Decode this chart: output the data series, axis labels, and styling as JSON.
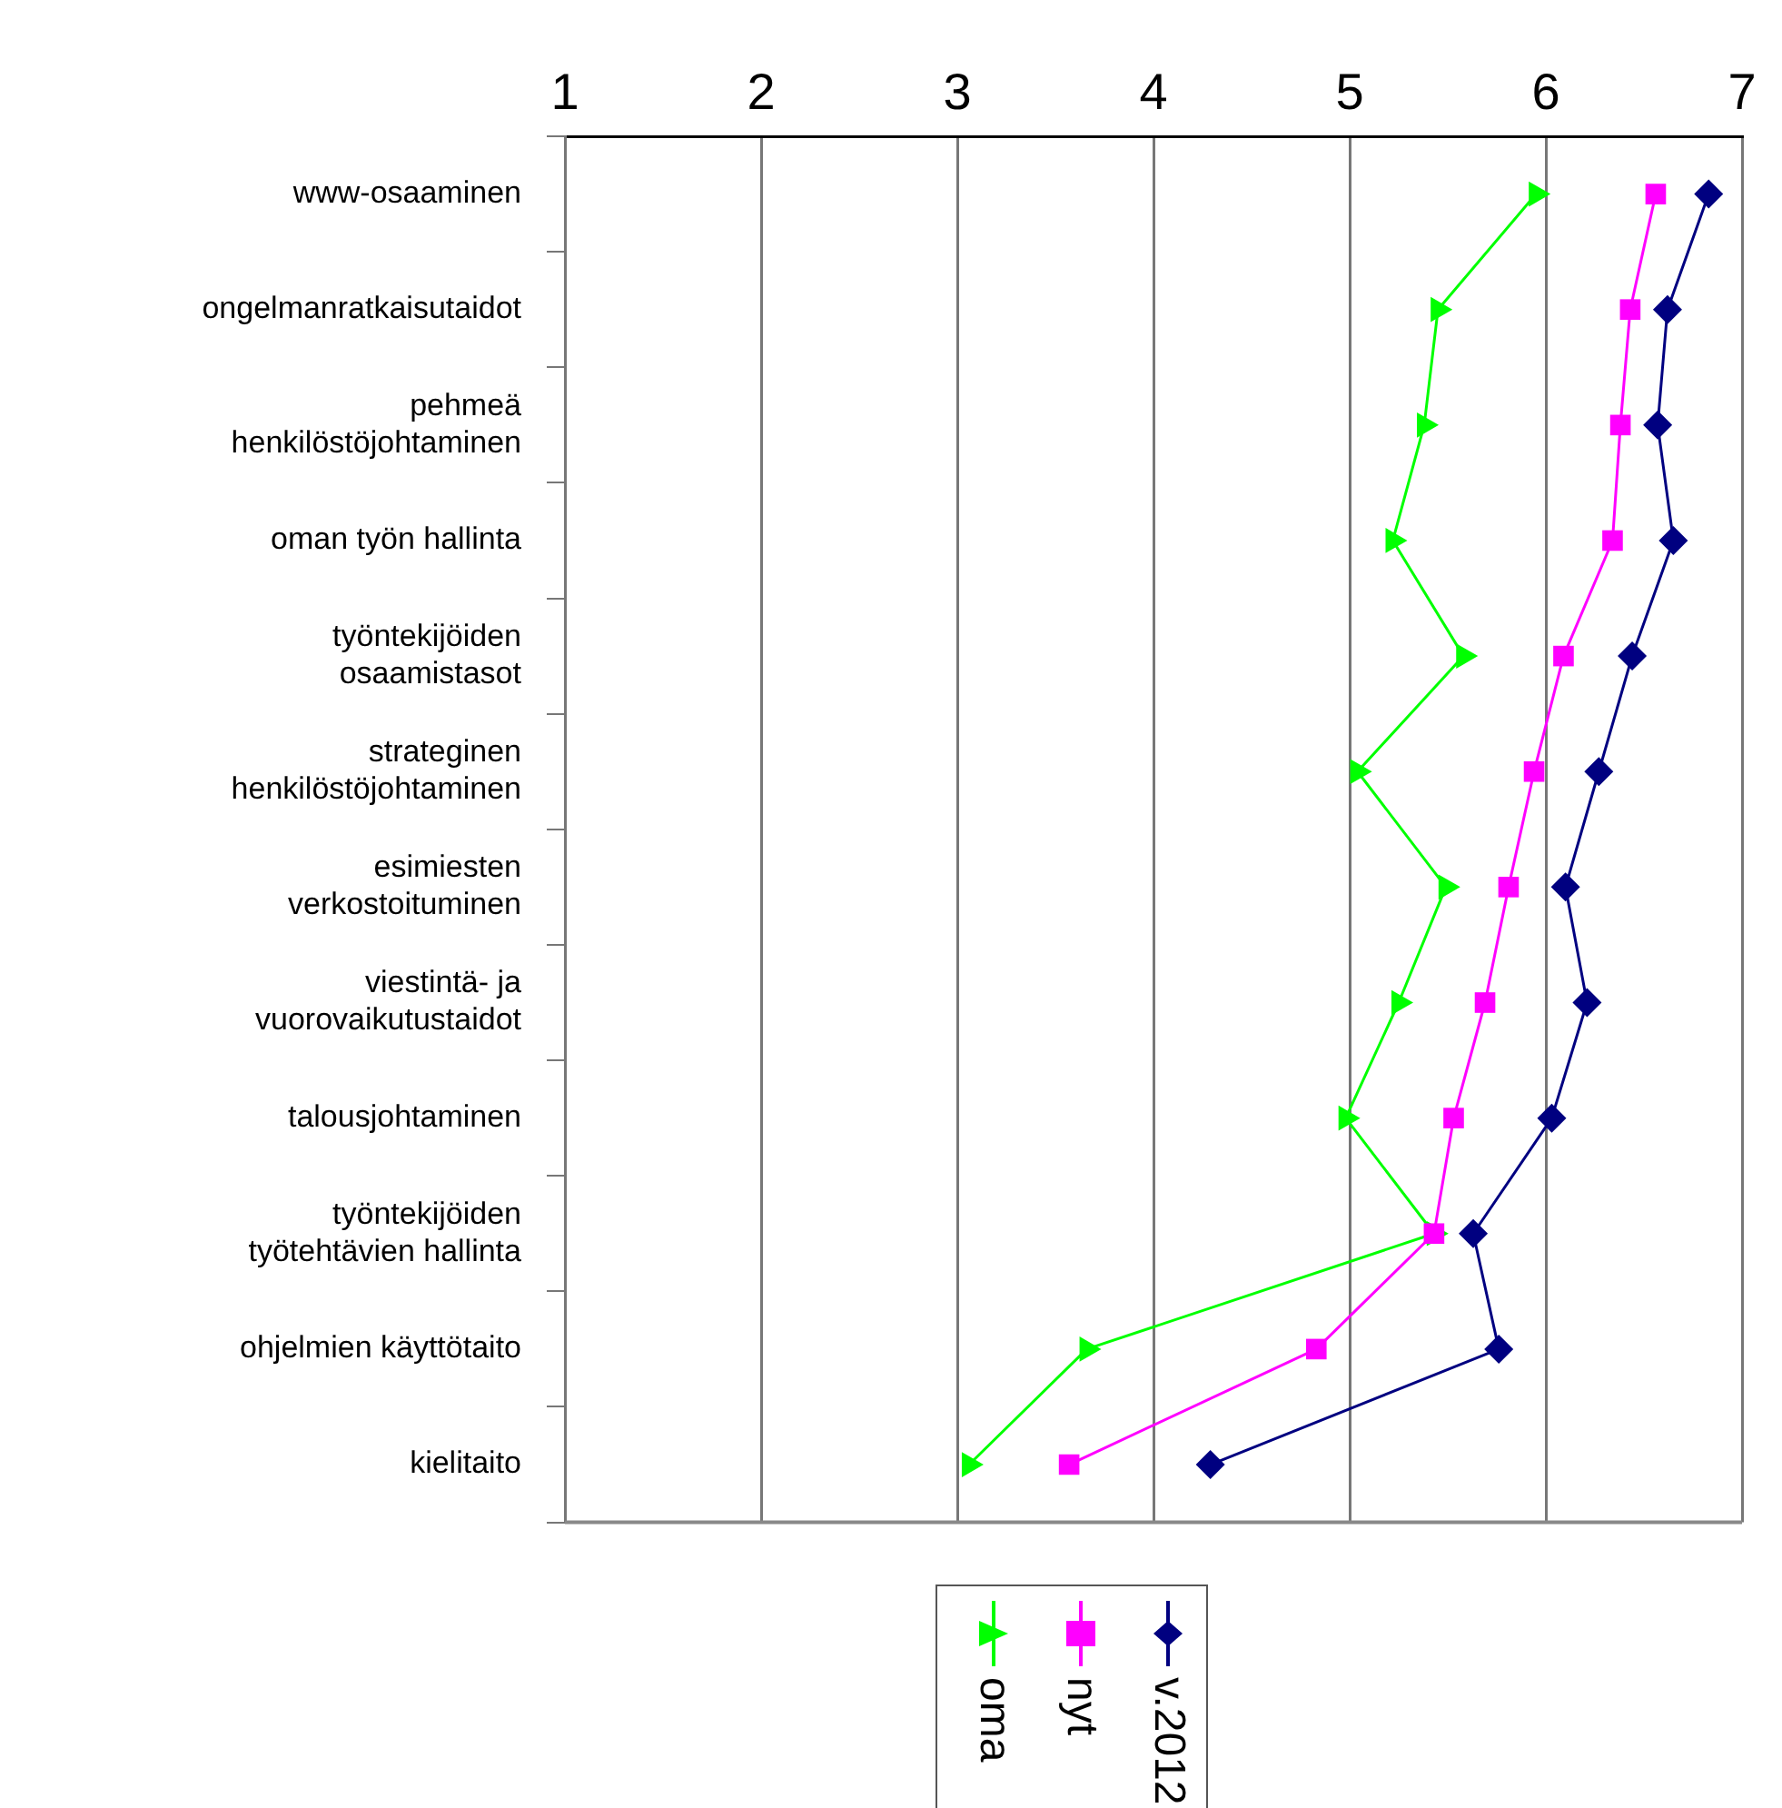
{
  "chart_data": {
    "type": "line",
    "orientation": "horizontal",
    "categories": [
      "www-osaaminen",
      "ongelmanratkaisutaidot",
      "pehmeä\nhenkilöstöjohtaminen",
      "oman työn hallinta",
      "työntekijöiden\nosaamistasot",
      "strateginen\nhenkilöstöjohtaminen",
      "esimiesten\nverkostoituminen",
      "viestintä- ja\nvuorovaikutustaidot",
      "talousjohtaminen",
      "työntekijöiden\ntyötehtävien hallinta",
      "ohjelmien käyttötaito",
      "kielitaito"
    ],
    "series": [
      {
        "name": "oma",
        "color": "#00ff00",
        "marker": "triangle",
        "values": [
          5.95,
          5.45,
          5.38,
          5.22,
          5.58,
          5.04,
          5.49,
          5.25,
          4.98,
          5.43,
          3.66,
          3.06
        ]
      },
      {
        "name": "nyt",
        "color": "#ff00ff",
        "marker": "square",
        "values": [
          6.56,
          6.43,
          6.38,
          6.34,
          6.09,
          5.94,
          5.81,
          5.69,
          5.53,
          5.43,
          4.83,
          3.57
        ]
      },
      {
        "name": "v.2012",
        "color": "#000080",
        "marker": "diamond",
        "values": [
          6.83,
          6.62,
          6.57,
          6.65,
          6.44,
          6.27,
          6.1,
          6.21,
          6.03,
          5.63,
          5.76,
          4.29
        ]
      }
    ],
    "xlim": [
      1,
      7
    ],
    "xticks": [
      1,
      2,
      3,
      4,
      5,
      6,
      7
    ],
    "grid": "x",
    "legend": "bottom"
  }
}
